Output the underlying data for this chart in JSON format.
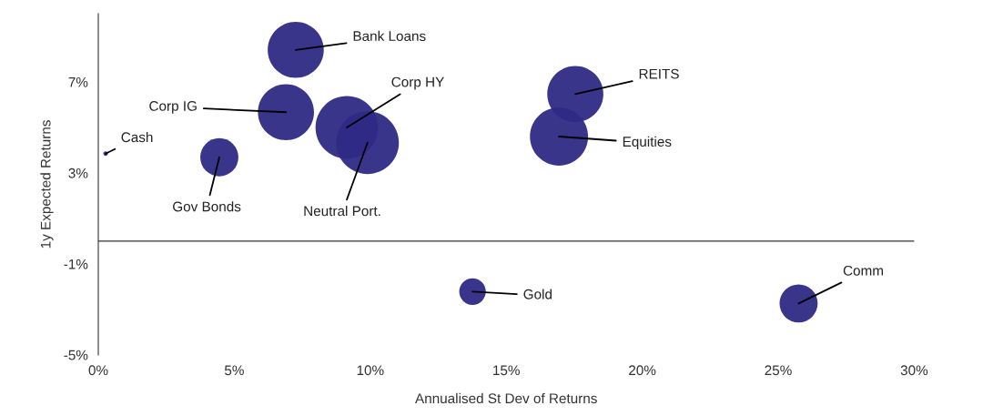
{
  "chart_data": {
    "type": "bubble",
    "xlabel": "Annualised St Dev of Returns",
    "ylabel": "1y Expected Returns",
    "series": [
      {
        "color": "#2e2a85",
        "x": [
          0.27,
          4.45,
          6.9,
          7.26,
          9.14,
          9.9,
          17.54,
          16.94,
          13.76,
          25.75
        ],
        "values": [
          3.85,
          3.69,
          5.67,
          8.41,
          5.0,
          4.33,
          6.47,
          4.6,
          -2.22,
          -2.74
        ],
        "sizes": [
          0.005,
          0.37,
          0.8,
          0.8,
          1,
          1,
          0.8,
          0.86,
          0.18,
          0.37
        ]
      }
    ],
    "annotations": [
      {
        "text": "Cash",
        "x": 0.27,
        "y": 3.85
      },
      {
        "text": "Gov Bonds",
        "x": 4.45,
        "y": 3.69
      },
      {
        "text": "Corp IG",
        "x": 6.9,
        "y": 5.67
      },
      {
        "text": "Bank Loans",
        "x": 7.26,
        "y": 8.41
      },
      {
        "text": "Corp HY",
        "x": 9.14,
        "y": 5.0
      },
      {
        "text": "Neutral Port.",
        "x": 9.9,
        "y": 4.33
      },
      {
        "text": "REITS",
        "x": 17.54,
        "y": 6.47
      },
      {
        "text": "Equities",
        "x": 16.94,
        "y": 4.6
      },
      {
        "text": "Gold",
        "x": 13.76,
        "y": -2.22
      },
      {
        "text": "Comm",
        "x": 25.75,
        "y": -2.74
      }
    ],
    "xlim": [
      0,
      30
    ],
    "ylim": [
      -5,
      10
    ],
    "xticks": [
      {
        "value": 0,
        "label": "0%"
      },
      {
        "value": 5,
        "label": "5%"
      },
      {
        "value": 10,
        "label": "10%"
      },
      {
        "value": 15,
        "label": "15%"
      },
      {
        "value": 20,
        "label": "20%"
      },
      {
        "value": 25,
        "label": "25%"
      },
      {
        "value": 30,
        "label": "30%"
      }
    ],
    "yticks": [
      {
        "value": -5,
        "label": "-5%"
      },
      {
        "value": -1,
        "label": "-1%"
      },
      {
        "value": 3,
        "label": "3%"
      },
      {
        "value": 7,
        "label": "7%"
      }
    ],
    "ref_lines": [
      {
        "axis": "y",
        "value": 0,
        "color": "#333333"
      }
    ],
    "grid": false,
    "legend": false
  }
}
